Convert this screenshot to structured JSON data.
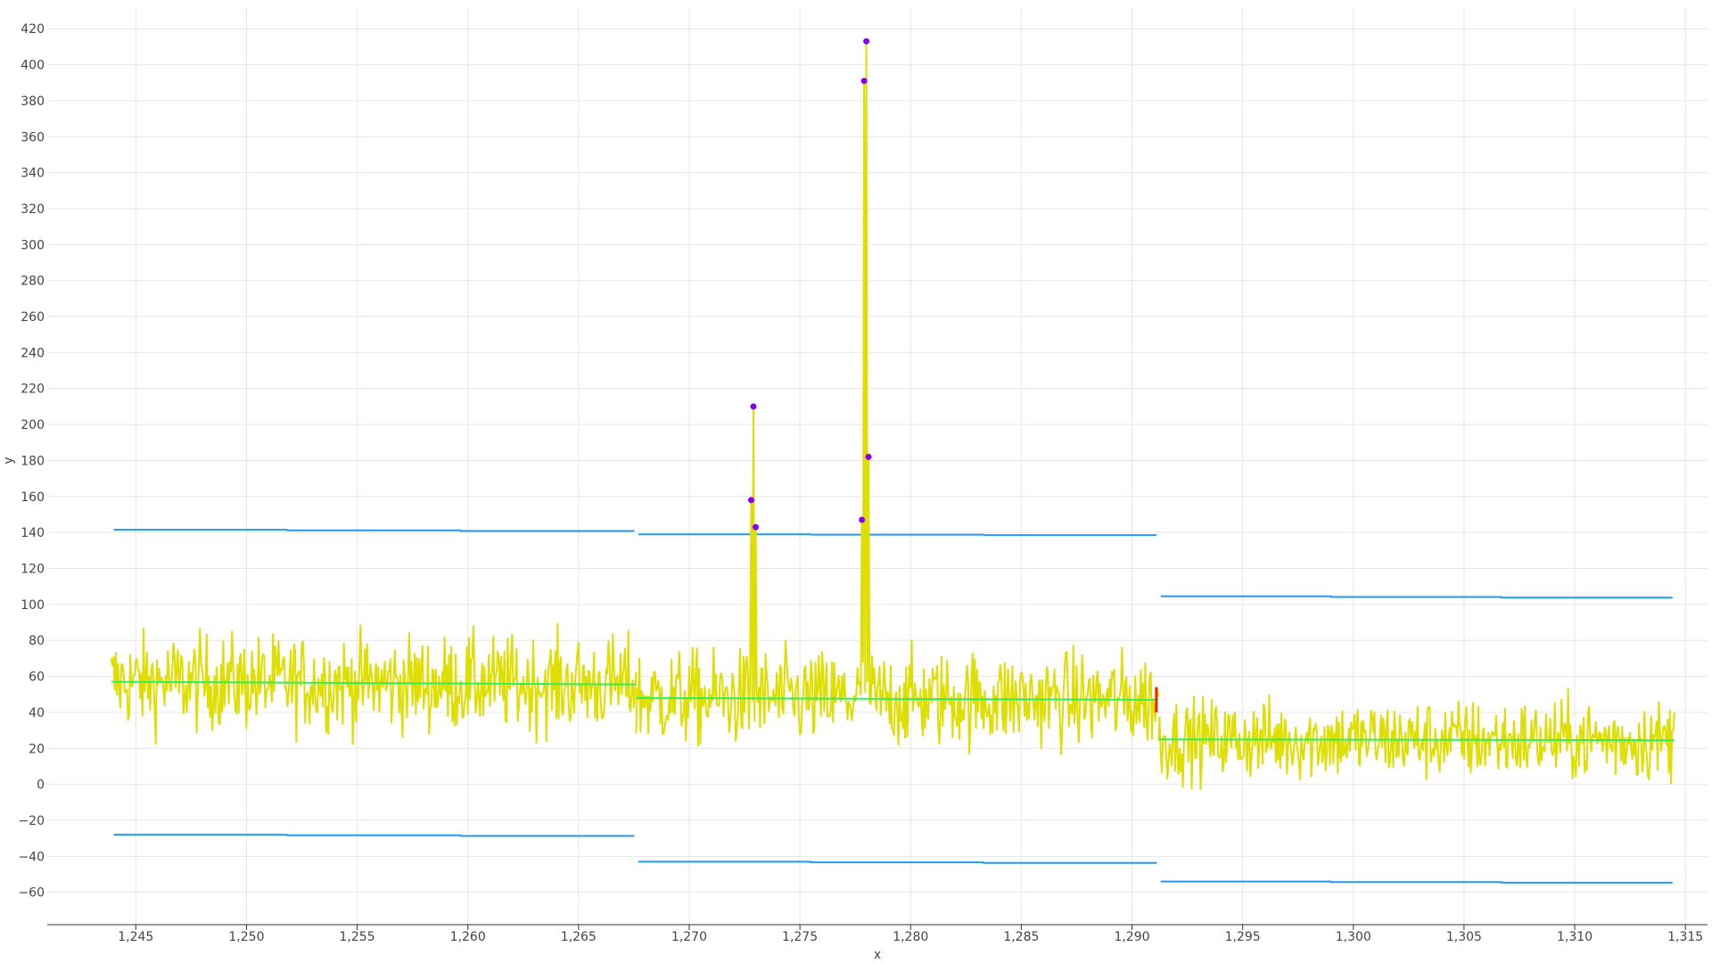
{
  "chart_data": {
    "type": "line",
    "title": "",
    "xlabel": "x",
    "ylabel": "y",
    "xlim": [
      1241,
      1316
    ],
    "ylim": [
      -78,
      432
    ],
    "grid": true,
    "x_ticks": [
      1245,
      1250,
      1255,
      1260,
      1265,
      1270,
      1275,
      1280,
      1285,
      1290,
      1295,
      1300,
      1305,
      1310,
      1315
    ],
    "x_tick_labels": [
      "1,245",
      "1,250",
      "1,255",
      "1,260",
      "1,265",
      "1,270",
      "1,275",
      "1,280",
      "1,285",
      "1,290",
      "1,295",
      "1,300",
      "1,305",
      "1,310",
      "1,315"
    ],
    "y_ticks": [
      -60,
      -40,
      -20,
      0,
      20,
      40,
      60,
      80,
      100,
      120,
      140,
      160,
      180,
      200,
      220,
      240,
      260,
      280,
      300,
      320,
      340,
      360,
      380,
      400,
      420
    ],
    "y_tick_labels": [
      "−60",
      "−40",
      "−20",
      "0",
      "20",
      "40",
      "60",
      "80",
      "100",
      "120",
      "140",
      "160",
      "180",
      "200",
      "220",
      "240",
      "260",
      "280",
      "300",
      "320",
      "340",
      "360",
      "380",
      "400",
      "420"
    ],
    "colors": {
      "signal": "#dede00",
      "mean": "#33ee55",
      "bounds": "#2299ee",
      "anomaly": "#8800ee",
      "changepoint": "#ee2200"
    },
    "signal": {
      "x_start": 1243.9,
      "x_end": 1314.5,
      "spikes": [
        {
          "x": 1272.8,
          "y": 158
        },
        {
          "x": 1272.9,
          "y": 210
        },
        {
          "x": 1273.0,
          "y": 143
        },
        {
          "x": 1277.8,
          "y": 147
        },
        {
          "x": 1277.9,
          "y": 391
        },
        {
          "x": 1278.0,
          "y": 413
        },
        {
          "x": 1278.1,
          "y": 182
        }
      ]
    },
    "segments": [
      {
        "x": [
          1243.9,
          1267.6
        ],
        "mean": [
          57,
          55.5
        ],
        "upper": [
          141.5,
          140.5
        ],
        "lower": [
          -28,
          -29
        ],
        "noise": 13
      },
      {
        "x": [
          1267.6,
          1291.2
        ],
        "mean": [
          48,
          47
        ],
        "upper": [
          139,
          138.3
        ],
        "lower": [
          -43,
          -44
        ],
        "noise": 13
      },
      {
        "x": [
          1291.2,
          1314.5
        ],
        "mean": [
          25,
          24.5
        ],
        "upper": [
          104.5,
          103.4
        ],
        "lower": [
          -54,
          -55
        ],
        "noise": 11
      }
    ],
    "anomalies": [
      {
        "x": 1272.8,
        "y": 158
      },
      {
        "x": 1272.9,
        "y": 210
      },
      {
        "x": 1273.0,
        "y": 143
      },
      {
        "x": 1277.8,
        "y": 147
      },
      {
        "x": 1277.9,
        "y": 391
      },
      {
        "x": 1278.0,
        "y": 413
      },
      {
        "x": 1278.1,
        "y": 182
      }
    ],
    "changepoint_x": 1291.1
  }
}
